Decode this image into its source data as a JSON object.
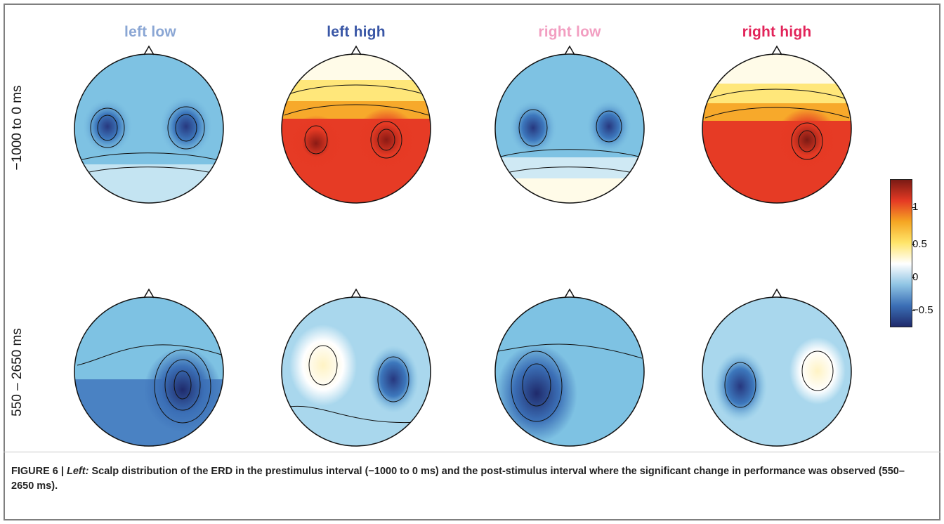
{
  "figure": {
    "columns": [
      {
        "title": "left low",
        "color": "#8aa6d4"
      },
      {
        "title": "left high",
        "color": "#3a57a6"
      },
      {
        "title": "right low",
        "color": "#f29ec1"
      },
      {
        "title": "right high",
        "color": "#e2245a"
      }
    ],
    "rows": [
      {
        "label": "−1000 to 0 ms"
      },
      {
        "label": "550 – 2650 ms"
      }
    ],
    "colorbar": {
      "ticks": [
        "1",
        "0.5",
        "0",
        "−0.5"
      ],
      "range": [
        -0.75,
        1.5
      ],
      "colormap": [
        "#1f2a6b",
        "#3b6fb6",
        "#8fc4e4",
        "#ffffff",
        "#ffe56a",
        "#f5a623",
        "#e53a24",
        "#7a1a14"
      ]
    }
  },
  "caption": {
    "prefix": "FIGURE 6 |",
    "italic": "Left:",
    "text": "Scalp distribution of the ERD in the prestimulus interval (−1000 to 0 ms) and the post-stimulus interval where the significant change in performance was observed (550–2650 ms)."
  }
}
